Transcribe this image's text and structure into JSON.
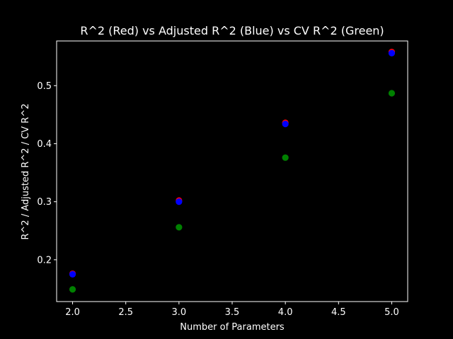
{
  "chart_data": {
    "type": "scatter",
    "title": "R^2 (Red) vs Adjusted R^2 (Blue) vs CV R^2 (Green)",
    "xlabel": "Number of Parameters",
    "ylabel": "R^2 / Adjusted R^2 / CV R^2",
    "xlim": [
      1.85,
      5.15
    ],
    "ylim": [
      0.128,
      0.577
    ],
    "xticks": [
      "2.0",
      "2.5",
      "3.0",
      "3.5",
      "4.0",
      "4.5",
      "5.0"
    ],
    "yticks": [
      "0.2",
      "0.3",
      "0.4",
      "0.5"
    ],
    "grid": false,
    "background": "#000000",
    "axis_color": "#ffffff",
    "series": [
      {
        "color": "#ff0000",
        "x": [
          2,
          3,
          4,
          5
        ],
        "y": [
          0.176,
          0.302,
          0.436,
          0.558
        ]
      },
      {
        "color": "#0000ff",
        "x": [
          2,
          3,
          4,
          5
        ],
        "y": [
          0.175,
          0.3,
          0.434,
          0.556
        ]
      },
      {
        "color": "#008000",
        "x": [
          2,
          3,
          4,
          5
        ],
        "y": [
          0.149,
          0.256,
          0.376,
          0.487
        ]
      }
    ]
  }
}
